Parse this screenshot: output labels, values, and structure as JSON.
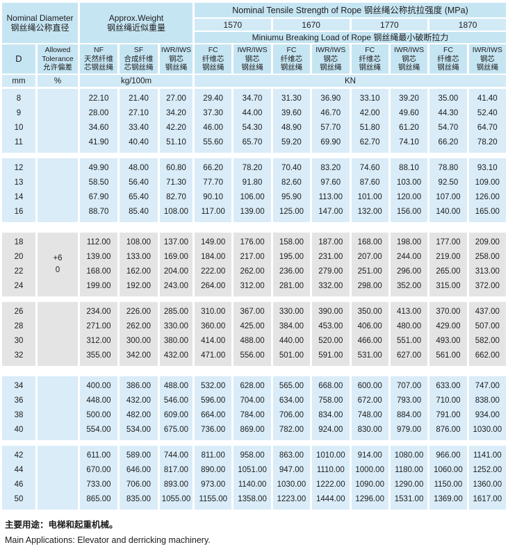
{
  "header": {
    "diameter_title": "Nominal Diameter",
    "diameter_title_cn": "钢丝绳公称直径",
    "weight_title": "Approx.Weight",
    "weight_title_cn": "钢丝绳近似重量",
    "tensile_title": "Nominal Tensile Strength of Rope  钢丝绳公称抗拉强度 (MPa)",
    "breaking_title": "Miniumu Breaking Load of Rope  钢丝绳最小破断拉力",
    "strengths": [
      "1570",
      "1670",
      "1770",
      "1870"
    ]
  },
  "columns": {
    "d_label": "D",
    "tolerance": {
      "lines": [
        "Allowed",
        "Tolerance",
        "允许偏差"
      ]
    },
    "weight_cols": [
      {
        "name": "NF",
        "lines": [
          "NF",
          "天然纤维",
          "芯钢丝绳"
        ]
      },
      {
        "name": "SF",
        "lines": [
          "SF",
          "合成纤维",
          "芯钢丝绳"
        ]
      },
      {
        "name": "IWR/IWS",
        "lines": [
          "IWR/IWS",
          "钢芯",
          "钢丝绳"
        ]
      }
    ],
    "strength_col_pair": [
      {
        "name": "FC",
        "lines": [
          "FC",
          "纤维芯",
          "钢丝绳"
        ]
      },
      {
        "name": "IWR/IWS",
        "lines": [
          "IWR/IWS",
          "钢芯",
          "钢丝绳"
        ]
      }
    ]
  },
  "units": {
    "d": "mm",
    "tolerance": "%",
    "weight": "kg/100m",
    "strength": "KN"
  },
  "bands": [
    {
      "shade": "blue",
      "tolerance": [],
      "rows": [
        {
          "d": "8",
          "values": [
            "22.10",
            "21.40",
            "27.00",
            "29.40",
            "34.70",
            "31.30",
            "36.90",
            "33.10",
            "39.20",
            "35.00",
            "41.40"
          ]
        },
        {
          "d": "9",
          "values": [
            "28.00",
            "27.10",
            "34.20",
            "37.30",
            "44.00",
            "39.60",
            "46.70",
            "42.00",
            "49.60",
            "44.30",
            "52.40"
          ]
        },
        {
          "d": "10",
          "values": [
            "34.60",
            "33.40",
            "42.20",
            "46.00",
            "54.30",
            "48.90",
            "57.70",
            "51.80",
            "61.20",
            "54.70",
            "64.70"
          ]
        },
        {
          "d": "11",
          "values": [
            "41.90",
            "40.40",
            "51.10",
            "55.60",
            "65.70",
            "59.20",
            "69.90",
            "62.70",
            "74.10",
            "66.20",
            "78.20"
          ]
        }
      ]
    },
    {
      "shade": "blue",
      "tolerance": [],
      "rows": [
        {
          "d": "12",
          "values": [
            "49.90",
            "48.00",
            "60.80",
            "66.20",
            "78.20",
            "70.40",
            "83.20",
            "74.60",
            "88.10",
            "78.80",
            "93.10"
          ]
        },
        {
          "d": "13",
          "values": [
            "58.50",
            "56.40",
            "71.30",
            "77.70",
            "91.80",
            "82.60",
            "97.60",
            "87.60",
            "103.00",
            "92.50",
            "109.00"
          ]
        },
        {
          "d": "14",
          "values": [
            "67.90",
            "65.40",
            "82.70",
            "90.10",
            "106.00",
            "95.90",
            "113.00",
            "101.00",
            "120.00",
            "107.00",
            "126.00"
          ]
        },
        {
          "d": "16",
          "values": [
            "88.70",
            "85.40",
            "108.00",
            "117.00",
            "139.00",
            "125.00",
            "147.00",
            "132.00",
            "156.00",
            "140.00",
            "165.00"
          ]
        }
      ]
    },
    {
      "shade": "gray",
      "tolerance": [
        "+6",
        "0"
      ],
      "rows": [
        {
          "d": "18",
          "values": [
            "112.00",
            "108.00",
            "137.00",
            "149.00",
            "176.00",
            "158.00",
            "187.00",
            "168.00",
            "198.00",
            "177.00",
            "209.00"
          ]
        },
        {
          "d": "20",
          "values": [
            "139.00",
            "133.00",
            "169.00",
            "184.00",
            "217.00",
            "195.00",
            "231.00",
            "207.00",
            "244.00",
            "219.00",
            "258.00"
          ]
        },
        {
          "d": "22",
          "values": [
            "168.00",
            "162.00",
            "204.00",
            "222.00",
            "262.00",
            "236.00",
            "279.00",
            "251.00",
            "296.00",
            "265.00",
            "313.00"
          ]
        },
        {
          "d": "24",
          "values": [
            "199.00",
            "192.00",
            "243.00",
            "264.00",
            "312.00",
            "281.00",
            "332.00",
            "298.00",
            "352.00",
            "315.00",
            "372.00"
          ]
        }
      ]
    },
    {
      "shade": "gray",
      "tolerance": [],
      "rows": [
        {
          "d": "26",
          "values": [
            "234.00",
            "226.00",
            "285.00",
            "310.00",
            "367.00",
            "330.00",
            "390.00",
            "350.00",
            "413.00",
            "370.00",
            "437.00"
          ]
        },
        {
          "d": "28",
          "values": [
            "271.00",
            "262.00",
            "330.00",
            "360.00",
            "425.00",
            "384.00",
            "453.00",
            "406.00",
            "480.00",
            "429.00",
            "507.00"
          ]
        },
        {
          "d": "30",
          "values": [
            "312.00",
            "300.00",
            "380.00",
            "414.00",
            "488.00",
            "440.00",
            "520.00",
            "466.00",
            "551.00",
            "493.00",
            "582.00"
          ]
        },
        {
          "d": "32",
          "values": [
            "355.00",
            "342.00",
            "432.00",
            "471.00",
            "556.00",
            "501.00",
            "591.00",
            "531.00",
            "627.00",
            "561.00",
            "662.00"
          ]
        }
      ]
    },
    {
      "shade": "blue",
      "tolerance": [],
      "rows": [
        {
          "d": "34",
          "values": [
            "400.00",
            "386.00",
            "488.00",
            "532.00",
            "628.00",
            "565.00",
            "668.00",
            "600.00",
            "707.00",
            "633.00",
            "747.00"
          ]
        },
        {
          "d": "36",
          "values": [
            "448.00",
            "432.00",
            "546.00",
            "596.00",
            "704.00",
            "634.00",
            "758.00",
            "672.00",
            "793.00",
            "710.00",
            "838.00"
          ]
        },
        {
          "d": "38",
          "values": [
            "500.00",
            "482.00",
            "609.00",
            "664.00",
            "784.00",
            "706.00",
            "834.00",
            "748.00",
            "884.00",
            "791.00",
            "934.00"
          ]
        },
        {
          "d": "40",
          "values": [
            "554.00",
            "534.00",
            "675.00",
            "736.00",
            "869.00",
            "782.00",
            "924.00",
            "830.00",
            "979.00",
            "876.00",
            "1030.00"
          ]
        }
      ]
    },
    {
      "shade": "blue",
      "tolerance": [],
      "rows": [
        {
          "d": "42",
          "values": [
            "611.00",
            "589.00",
            "744.00",
            "811.00",
            "958.00",
            "863.00",
            "1010.00",
            "914.00",
            "1080.00",
            "966.00",
            "1141.00"
          ]
        },
        {
          "d": "44",
          "values": [
            "670.00",
            "646.00",
            "817.00",
            "890.00",
            "1051.00",
            "947.00",
            "1110.00",
            "1000.00",
            "1180.00",
            "1060.00",
            "1252.00"
          ]
        },
        {
          "d": "46",
          "values": [
            "733.00",
            "706.00",
            "893.00",
            "973.00",
            "1140.00",
            "1030.00",
            "1222.00",
            "1090.00",
            "1290.00",
            "1150.00",
            "1360.00"
          ]
        },
        {
          "d": "50",
          "values": [
            "865.00",
            "835.00",
            "1055.00",
            "1155.00",
            "1358.00",
            "1223.00",
            "1444.00",
            "1296.00",
            "1531.00",
            "1369.00",
            "1617.00"
          ]
        }
      ]
    }
  ],
  "footer": {
    "cn": "主要用途：电梯和起重机械。",
    "en": "Main Applications: Elevator and derricking machinery."
  },
  "colors": {
    "header_bg": "#c6e5f3",
    "header_bg_light": "#d2eaf6",
    "row_blue": "#d9ecf8",
    "row_gray": "#e4e4e4",
    "text": "#1c1c1c",
    "page_bg": "#ffffff"
  }
}
